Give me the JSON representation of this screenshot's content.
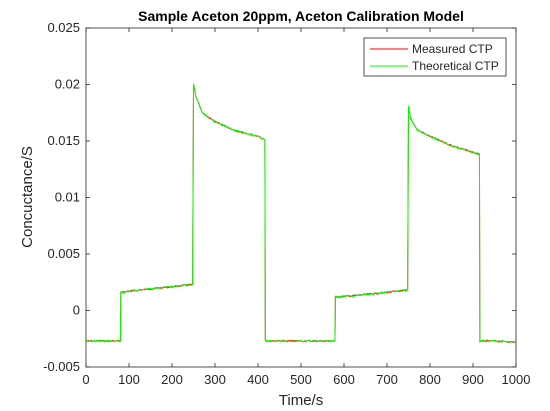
{
  "chart_data": {
    "type": "line",
    "title": "Sample Aceton 20ppm, Aceton Calibration Model",
    "xlabel": "Time/s",
    "ylabel": "Concuctance/S",
    "xlim": [
      0,
      1000
    ],
    "ylim": [
      -0.005,
      0.025
    ],
    "xticks": [
      0,
      100,
      200,
      300,
      400,
      500,
      600,
      700,
      800,
      900,
      1000
    ],
    "xtick_labels": [
      "0",
      "100",
      "200",
      "300",
      "400",
      "500",
      "600",
      "700",
      "800",
      "900",
      "1000"
    ],
    "yticks": [
      -0.005,
      0,
      0.005,
      0.01,
      0.015,
      0.02,
      0.025
    ],
    "ytick_labels": [
      "-0.005",
      "0",
      "0.005",
      "0.01",
      "0.015",
      "0.02",
      "0.025"
    ],
    "grid": false,
    "legend_position": "top-right",
    "series": [
      {
        "name": "Measured CTP",
        "color": "#ff0000",
        "x": [
          0,
          80,
          81,
          120,
          200,
          248,
          250,
          255,
          270,
          300,
          350,
          400,
          416,
          417,
          450,
          500,
          579,
          580,
          620,
          700,
          748,
          750,
          755,
          770,
          800,
          850,
          900,
          915,
          916,
          950,
          1000
        ],
        "y": [
          -0.0027,
          -0.0027,
          0.0016,
          0.0018,
          0.0021,
          0.0023,
          0.02,
          0.019,
          0.0175,
          0.0167,
          0.0159,
          0.0154,
          0.0151,
          -0.0027,
          -0.0027,
          -0.0027,
          -0.0027,
          0.0012,
          0.0013,
          0.0016,
          0.0018,
          0.018,
          0.017,
          0.016,
          0.0154,
          0.0146,
          0.014,
          0.0138,
          -0.0027,
          -0.0027,
          -0.0028
        ]
      },
      {
        "name": "Theoretical CTP",
        "color": "#00ff00",
        "x": [
          0,
          80,
          81,
          120,
          200,
          248,
          250,
          255,
          270,
          300,
          350,
          400,
          416,
          417,
          450,
          500,
          579,
          580,
          620,
          700,
          748,
          750,
          755,
          770,
          800,
          850,
          900,
          915,
          916,
          950,
          1000
        ],
        "y": [
          -0.0027,
          -0.0027,
          0.0016,
          0.0018,
          0.0021,
          0.0023,
          0.0201,
          0.019,
          0.0175,
          0.0167,
          0.0159,
          0.0154,
          0.0151,
          -0.0027,
          -0.0027,
          -0.0027,
          -0.0027,
          0.0012,
          0.0013,
          0.0016,
          0.0018,
          0.0181,
          0.017,
          0.016,
          0.0154,
          0.0146,
          0.014,
          0.0138,
          -0.0027,
          -0.0027,
          -0.0028
        ]
      }
    ]
  }
}
